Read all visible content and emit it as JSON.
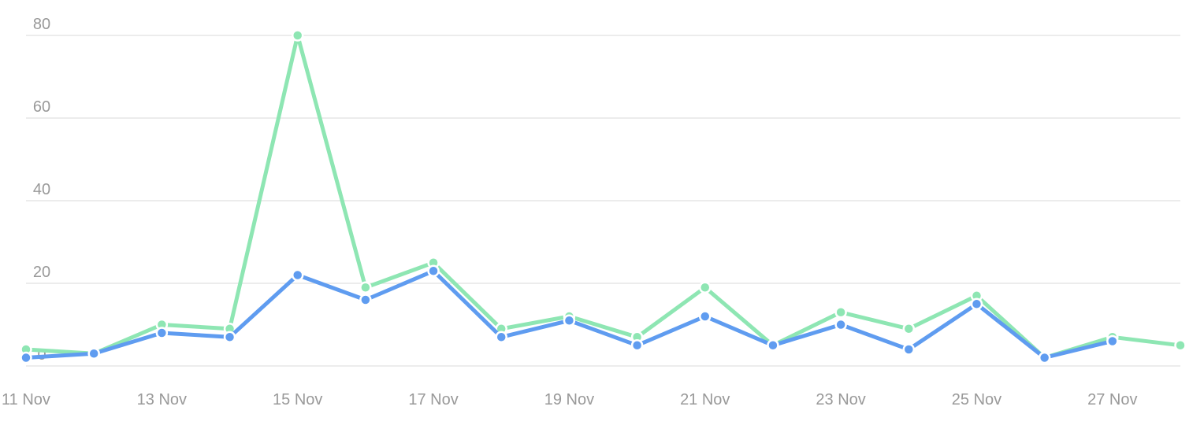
{
  "chart_data": {
    "type": "line",
    "title": "",
    "xlabel": "",
    "ylabel": "",
    "x": [
      "11 Nov",
      "12 Nov",
      "13 Nov",
      "14 Nov",
      "15 Nov",
      "16 Nov",
      "17 Nov",
      "18 Nov",
      "19 Nov",
      "20 Nov",
      "21 Nov",
      "22 Nov",
      "23 Nov",
      "24 Nov",
      "25 Nov",
      "26 Nov",
      "27 Nov",
      "28 Nov"
    ],
    "x_tick_labels": [
      "11 Nov",
      "13 Nov",
      "15 Nov",
      "17 Nov",
      "19 Nov",
      "21 Nov",
      "23 Nov",
      "25 Nov",
      "27 Nov"
    ],
    "y_ticks": [
      "0",
      "20",
      "40",
      "60",
      "80"
    ],
    "ylim": [
      0,
      80
    ],
    "grid": true,
    "legend": "none",
    "series": [
      {
        "color": "#8ee6b3",
        "values": [
          4,
          3,
          10,
          9,
          80,
          19,
          25,
          9,
          12,
          7,
          19,
          5,
          13,
          9,
          17,
          2,
          7,
          5
        ]
      },
      {
        "color": "#5f9cf0",
        "values": [
          2,
          3,
          8,
          7,
          22,
          16,
          23,
          7,
          11,
          5,
          12,
          5,
          10,
          4,
          15,
          2,
          6,
          null
        ]
      }
    ]
  }
}
